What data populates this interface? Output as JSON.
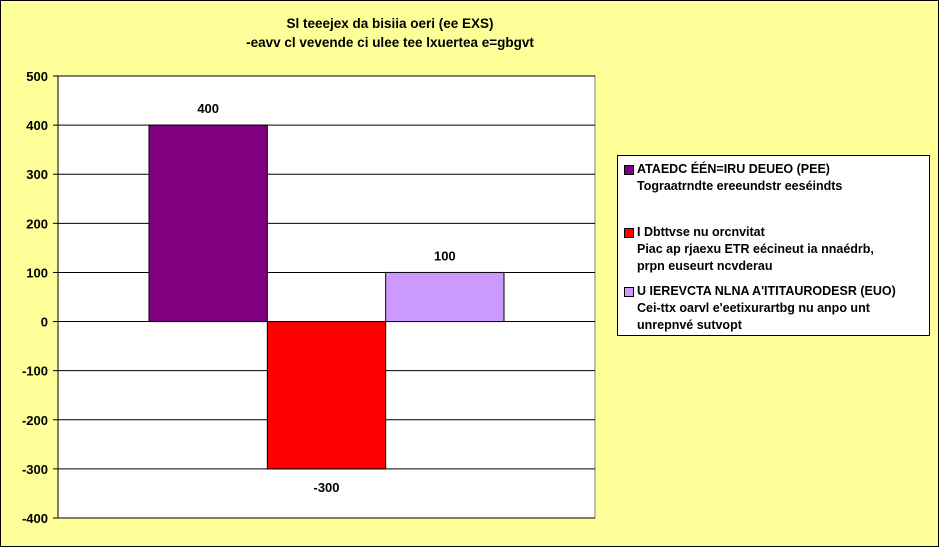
{
  "chart_data": {
    "type": "bar",
    "title": [
      "Sl teeejex da bisiia oeri (ee EXS)",
      "-eavv cl vevende ci ulee tee lxuertea e=gbgvt"
    ],
    "ylim": [
      -400,
      500
    ],
    "yticks": [
      500,
      400,
      300,
      200,
      100,
      0,
      -100,
      -200,
      -300,
      -400
    ],
    "grid": true,
    "legend_position": "right",
    "series": [
      {
        "name": "ATAEDC ÉÉN=IRU DEUEO (PEE)",
        "description": [
          "Tograatrndte ereeundstr eeséindts"
        ],
        "value": 400,
        "label": "400",
        "color": "#800080"
      },
      {
        "name": "I Dbttvse nu orcnvitat",
        "description": [
          "Piac ap rjaexu ETR eécineut ia nnaédrb,",
          "prpn euseurt ncvderau"
        ],
        "value": -300,
        "label": "-300",
        "color": "#ff0000"
      },
      {
        "name": "U IEREVCTA NLNA A'ITITAURODESR (EUO)",
        "description": [
          "Cei-ttx oarvl e'eetixurartbg nu anpo unt",
          "unrepnvé sutvopt"
        ],
        "value": 100,
        "label": "100",
        "color": "#cc99ff"
      }
    ]
  }
}
